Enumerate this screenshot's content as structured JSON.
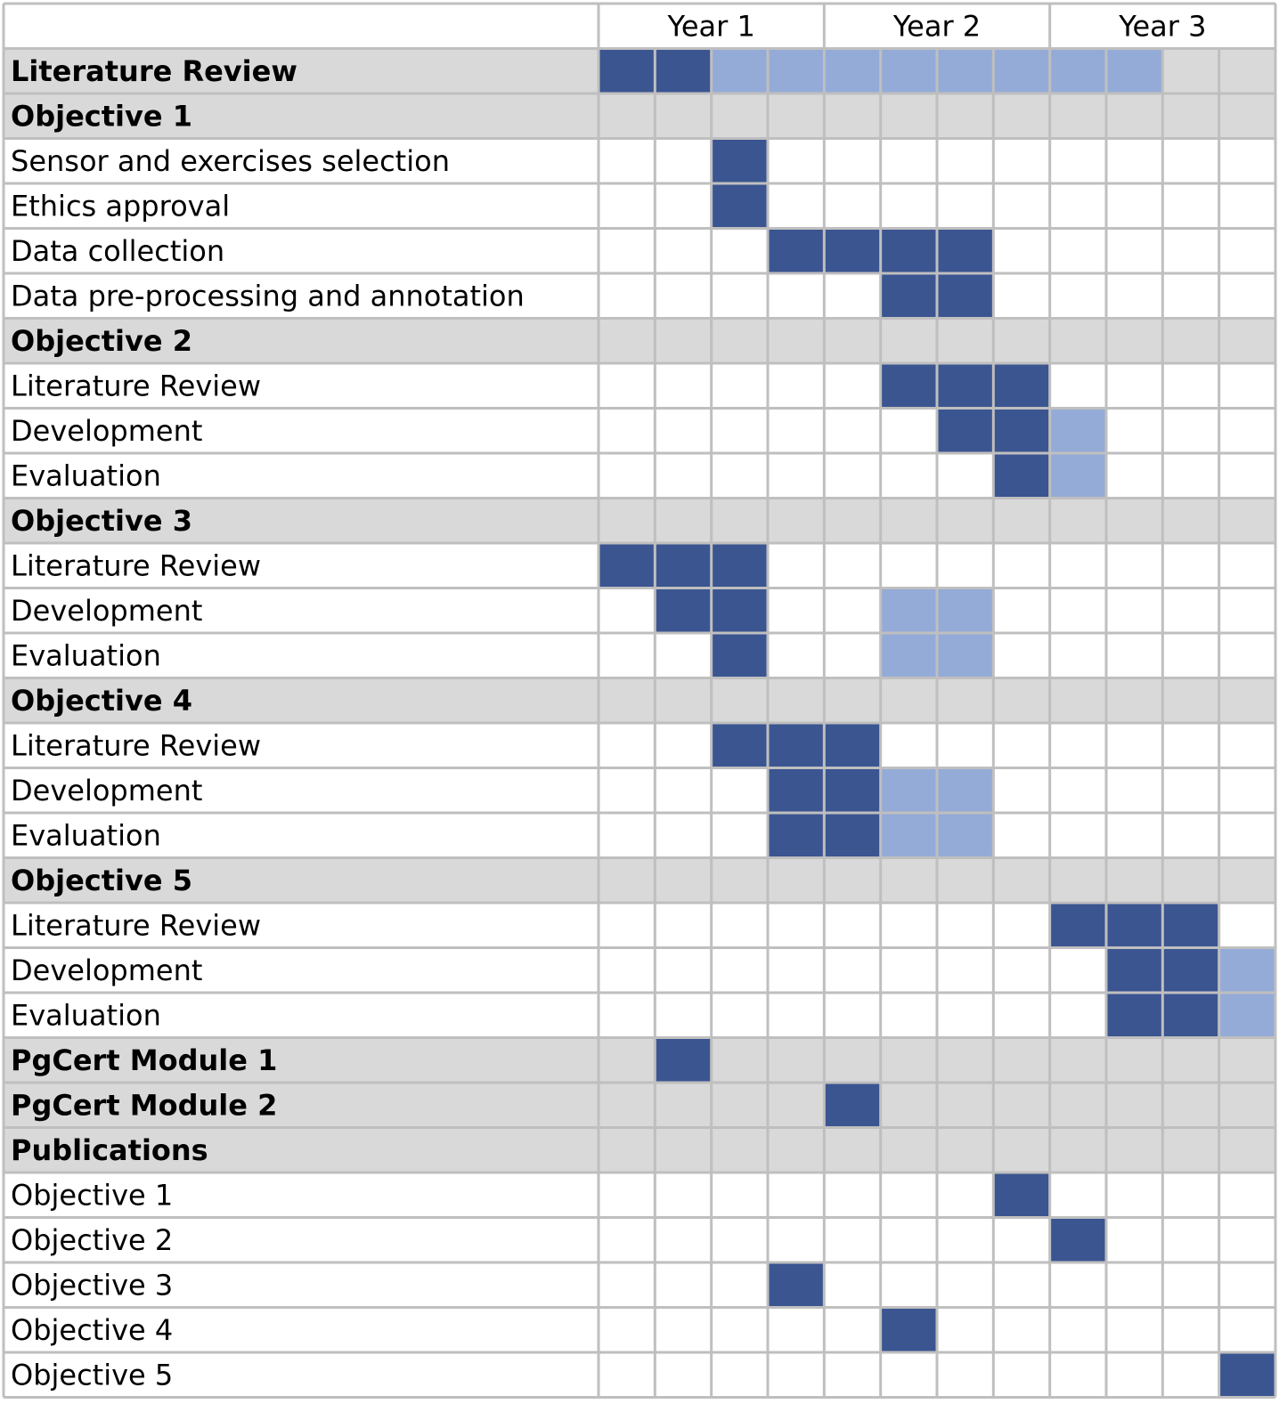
{
  "chart_data": {
    "type": "gantt",
    "title": "",
    "columns_per_year": 4,
    "years": [
      "Year 1",
      "Year 2",
      "Year 3"
    ],
    "legend": [],
    "colors": {
      "primary": "#3b5591",
      "secondary": "#94abd8",
      "header_row_bg": "#d9d9d9",
      "grid": "#bfbfbf"
    },
    "rows": [
      {
        "label": "Literature Review",
        "header": true,
        "primary": [
          1,
          2
        ],
        "secondary": [
          3,
          4,
          5,
          6,
          7,
          8,
          9,
          10
        ]
      },
      {
        "label": "Objective 1",
        "header": true,
        "primary": [],
        "secondary": []
      },
      {
        "label": "Sensor and exercises selection",
        "header": false,
        "primary": [
          3
        ],
        "secondary": []
      },
      {
        "label": "Ethics approval",
        "header": false,
        "primary": [
          3
        ],
        "secondary": []
      },
      {
        "label": "Data collection",
        "header": false,
        "primary": [
          4,
          5,
          6,
          7
        ],
        "secondary": []
      },
      {
        "label": "Data pre-processing and annotation",
        "header": false,
        "primary": [
          6,
          7
        ],
        "secondary": []
      },
      {
        "label": "Objective 2",
        "header": true,
        "primary": [],
        "secondary": []
      },
      {
        "label": "Literature Review",
        "header": false,
        "primary": [
          6,
          7,
          8
        ],
        "secondary": []
      },
      {
        "label": "Development",
        "header": false,
        "primary": [
          7,
          8
        ],
        "secondary": [
          9
        ]
      },
      {
        "label": "Evaluation",
        "header": false,
        "primary": [
          8
        ],
        "secondary": [
          9
        ]
      },
      {
        "label": "Objective 3",
        "header": true,
        "primary": [],
        "secondary": []
      },
      {
        "label": "Literature Review",
        "header": false,
        "primary": [
          1,
          2,
          3
        ],
        "secondary": []
      },
      {
        "label": "Development",
        "header": false,
        "primary": [
          2,
          3
        ],
        "secondary": [
          6,
          7
        ]
      },
      {
        "label": "Evaluation",
        "header": false,
        "primary": [
          3
        ],
        "secondary": [
          6,
          7
        ]
      },
      {
        "label": "Objective 4",
        "header": true,
        "primary": [],
        "secondary": []
      },
      {
        "label": "Literature Review",
        "header": false,
        "primary": [
          3,
          4,
          5
        ],
        "secondary": []
      },
      {
        "label": "Development",
        "header": false,
        "primary": [
          4,
          5
        ],
        "secondary": [
          6,
          7
        ]
      },
      {
        "label": "Evaluation",
        "header": false,
        "primary": [
          4,
          5
        ],
        "secondary": [
          6,
          7
        ]
      },
      {
        "label": "Objective 5",
        "header": true,
        "primary": [],
        "secondary": []
      },
      {
        "label": "Literature Review",
        "header": false,
        "primary": [
          9,
          10,
          11
        ],
        "secondary": []
      },
      {
        "label": "Development",
        "header": false,
        "primary": [
          10,
          11
        ],
        "secondary": [
          12
        ]
      },
      {
        "label": "Evaluation",
        "header": false,
        "primary": [
          10,
          11
        ],
        "secondary": [
          12
        ]
      },
      {
        "label": "PgCert Module 1",
        "header": true,
        "primary": [
          2
        ],
        "secondary": []
      },
      {
        "label": "PgCert Module 2",
        "header": true,
        "primary": [
          5
        ],
        "secondary": []
      },
      {
        "label": "Publications",
        "header": true,
        "primary": [],
        "secondary": []
      },
      {
        "label": "Objective 1",
        "header": false,
        "primary": [
          8
        ],
        "secondary": []
      },
      {
        "label": "Objective 2",
        "header": false,
        "primary": [
          9
        ],
        "secondary": []
      },
      {
        "label": "Objective 3",
        "header": false,
        "primary": [
          4
        ],
        "secondary": []
      },
      {
        "label": "Objective 4",
        "header": false,
        "primary": [
          6
        ],
        "secondary": []
      },
      {
        "label": "Objective 5",
        "header": false,
        "primary": [
          12
        ],
        "secondary": []
      }
    ]
  }
}
